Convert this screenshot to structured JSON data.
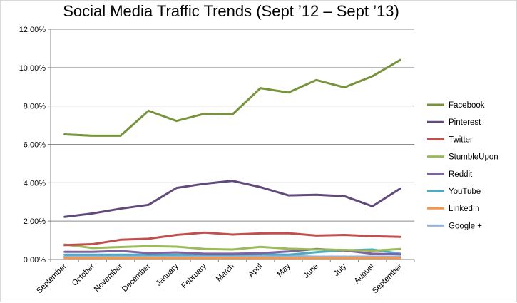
{
  "chart_data": {
    "type": "line",
    "title": "Social Media Traffic Trends (Sept ’12 – Sept ’13)",
    "xlabel": "",
    "ylabel": "",
    "ylim": [
      0,
      12
    ],
    "y_unit": "%",
    "y_ticks": [
      "0.00%",
      "2.00%",
      "4.00%",
      "6.00%",
      "8.00%",
      "10.00%",
      "12.00%"
    ],
    "grid": "horizontal",
    "legend_position": "right",
    "categories": [
      "September",
      "October",
      "November",
      "December",
      "January",
      "February",
      "March",
      "April",
      "May",
      "June",
      "July",
      "August",
      "September"
    ],
    "series": [
      {
        "name": "Facebook",
        "color": "#77933C",
        "values": [
          6.52,
          6.45,
          6.45,
          7.75,
          7.22,
          7.6,
          7.56,
          8.93,
          8.7,
          9.35,
          8.97,
          9.55,
          10.4
        ]
      },
      {
        "name": "Pinterest",
        "color": "#604A7B",
        "values": [
          2.22,
          2.4,
          2.65,
          2.85,
          3.73,
          3.95,
          4.1,
          3.77,
          3.34,
          3.37,
          3.3,
          2.77,
          3.7
        ]
      },
      {
        "name": "Twitter",
        "color": "#C0504D",
        "values": [
          0.75,
          0.8,
          1.03,
          1.08,
          1.28,
          1.4,
          1.3,
          1.36,
          1.37,
          1.25,
          1.28,
          1.22,
          1.18
        ]
      },
      {
        "name": "StumbleUpon",
        "color": "#9BBB59",
        "values": [
          0.78,
          0.6,
          0.65,
          0.7,
          0.67,
          0.55,
          0.52,
          0.66,
          0.56,
          0.52,
          0.5,
          0.46,
          0.55
        ]
      },
      {
        "name": "Reddit",
        "color": "#8064A2",
        "values": [
          0.4,
          0.4,
          0.45,
          0.33,
          0.37,
          0.3,
          0.3,
          0.33,
          0.42,
          0.55,
          0.47,
          0.3,
          0.27
        ]
      },
      {
        "name": "YouTube",
        "color": "#4BACC6",
        "values": [
          0.25,
          0.25,
          0.25,
          0.25,
          0.25,
          0.25,
          0.25,
          0.28,
          0.25,
          0.38,
          0.48,
          0.52,
          0.3
        ]
      },
      {
        "name": "LinkedIn",
        "color": "#F79646",
        "values": [
          0.08,
          0.08,
          0.08,
          0.08,
          0.08,
          0.08,
          0.08,
          0.08,
          0.08,
          0.08,
          0.08,
          0.08,
          0.08
        ]
      },
      {
        "name": "Google +",
        "color": "#95B3D7",
        "values": [
          0.15,
          0.15,
          0.15,
          0.16,
          0.17,
          0.18,
          0.18,
          0.2,
          0.18,
          0.15,
          0.15,
          0.15,
          0.15
        ]
      }
    ]
  }
}
